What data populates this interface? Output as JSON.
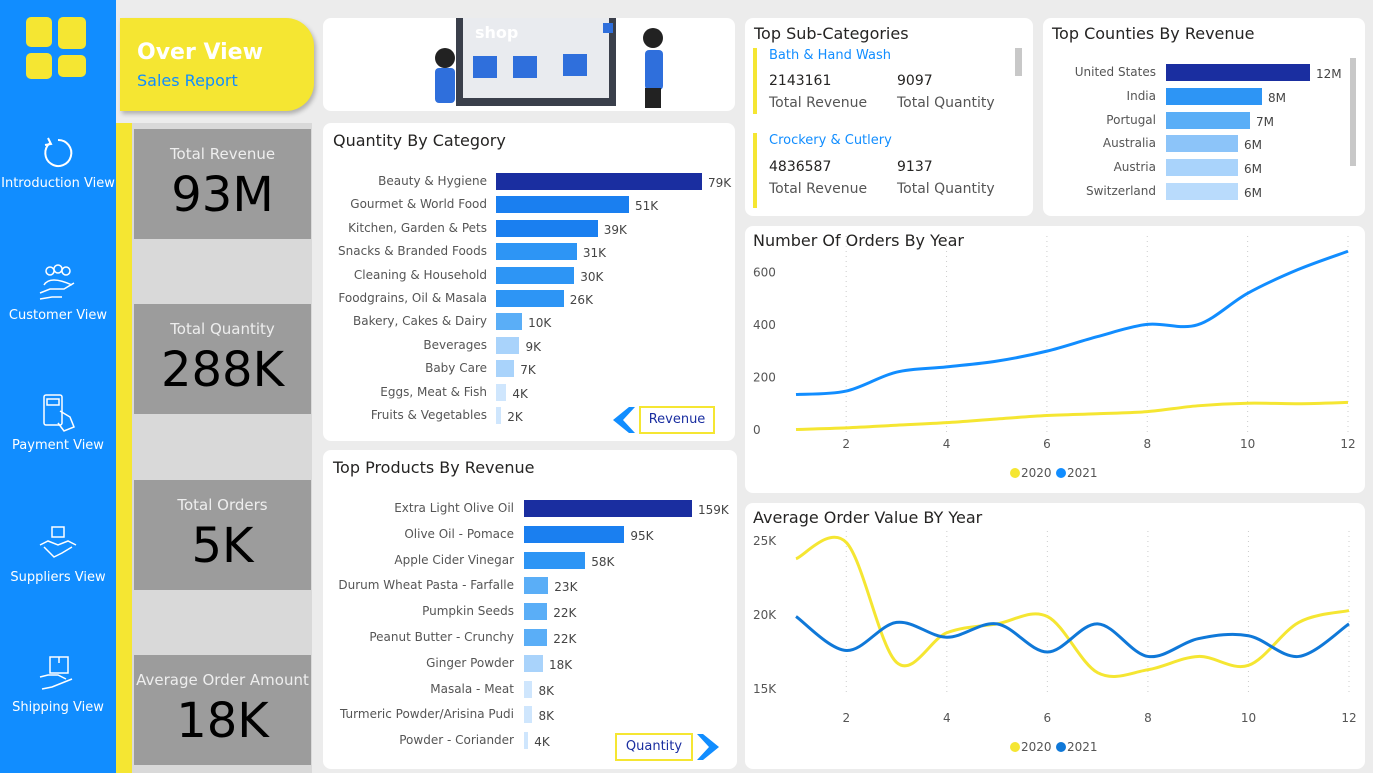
{
  "sidebar": {
    "items": [
      {
        "label": "Introduction View",
        "icon": "refresh-icon"
      },
      {
        "label": "Customer View",
        "icon": "customers-icon"
      },
      {
        "label": "Payment View",
        "icon": "payment-icon"
      },
      {
        "label": "Suppliers View",
        "icon": "handshake-icon"
      },
      {
        "label": "Shipping View",
        "icon": "shipping-icon"
      }
    ]
  },
  "header": {
    "title": "Over View",
    "subtitle": "Sales Report",
    "banner_text": "shop"
  },
  "kpis": [
    {
      "label": "Total Revenue",
      "value": "93M"
    },
    {
      "label": "Total Quantity",
      "value": "288K"
    },
    {
      "label": "Total Orders",
      "value": "5K"
    },
    {
      "label": "Average Order Amount",
      "value": "18K"
    }
  ],
  "sub_categories": {
    "title": "Top Sub-Categories",
    "items": [
      {
        "name": "Bath & Hand Wash",
        "revenue": "2143161",
        "quantity": "9097",
        "revenue_label": "Total Revenue",
        "quantity_label": "Total Quantity"
      },
      {
        "name": "Crockery & Cutlery",
        "revenue": "4836587",
        "quantity": "9137",
        "revenue_label": "Total Revenue",
        "quantity_label": "Total Quantity"
      }
    ]
  },
  "colors": {
    "primary": "#118dff",
    "accent": "#f5e632",
    "dark_bar": "#1a2ea0",
    "line_2020": "#f5e632",
    "line_2021_orders": "#118dff",
    "line_2021_aov": "#0f78d8"
  },
  "chart_data": [
    {
      "type": "bar",
      "orientation": "horizontal",
      "title": "Quantity By Category",
      "categories": [
        "Beauty & Hygiene",
        "Gourmet & World Food",
        "Kitchen, Garden & Pets",
        "Snacks & Branded Foods",
        "Cleaning & Household",
        "Foodgrains, Oil & Masala",
        "Bakery, Cakes & Dairy",
        "Beverages",
        "Baby Care",
        "Eggs, Meat & Fish",
        "Fruits & Vegetables"
      ],
      "values": [
        79,
        51,
        39,
        31,
        30,
        26,
        10,
        9,
        7,
        4,
        2
      ],
      "labels": [
        "79K",
        "51K",
        "39K",
        "31K",
        "30K",
        "26K",
        "10K",
        "9K",
        "7K",
        "4K",
        "2K"
      ],
      "toggle_label": "Revenue"
    },
    {
      "type": "bar",
      "orientation": "horizontal",
      "title": "Top Products By Revenue",
      "categories": [
        "Extra Light Olive Oil",
        "Olive Oil - Pomace",
        "Apple Cider Vinegar",
        "Durum Wheat Pasta - Farfalle",
        "Pumpkin Seeds",
        "Peanut Butter - Crunchy",
        "Ginger Powder",
        "Masala - Meat",
        "Turmeric Powder/Arisina Pudi",
        "Powder - Coriander"
      ],
      "values": [
        159,
        95,
        58,
        23,
        22,
        22,
        18,
        8,
        8,
        4
      ],
      "labels": [
        "159K",
        "95K",
        "58K",
        "23K",
        "22K",
        "22K",
        "18K",
        "8K",
        "8K",
        "4K"
      ],
      "toggle_label": "Quantity"
    },
    {
      "type": "bar",
      "orientation": "horizontal",
      "title": "Top Counties By Revenue",
      "categories": [
        "United States",
        "India",
        "Portugal",
        "Australia",
        "Austria",
        "Switzerland"
      ],
      "values": [
        12,
        8,
        7,
        6,
        6,
        6
      ],
      "labels": [
        "12M",
        "8M",
        "7M",
        "6M",
        "6M",
        "6M"
      ]
    },
    {
      "type": "line",
      "title": "Number Of Orders By Year",
      "x": [
        1,
        2,
        3,
        4,
        5,
        6,
        7,
        8,
        9,
        10,
        11,
        12
      ],
      "xticks": [
        "2",
        "4",
        "6",
        "8",
        "10",
        "12"
      ],
      "yticks": [
        "0",
        "200",
        "400",
        "600"
      ],
      "ylim": [
        0,
        700
      ],
      "legend": "bottom",
      "series": [
        {
          "name": "2020",
          "values": [
            2,
            8,
            18,
            28,
            42,
            55,
            62,
            70,
            92,
            102,
            100,
            105
          ]
        },
        {
          "name": "2021",
          "values": [
            135,
            148,
            220,
            240,
            262,
            300,
            355,
            402,
            400,
            520,
            610,
            680
          ]
        }
      ]
    },
    {
      "type": "line",
      "title": "Average Order Value BY Year",
      "x": [
        1,
        2,
        3,
        4,
        5,
        6,
        7,
        8,
        9,
        10,
        11,
        12
      ],
      "xticks": [
        "2",
        "4",
        "6",
        "8",
        "10",
        "12"
      ],
      "yticks": [
        "15K",
        "20K",
        "25K"
      ],
      "ylim": [
        15000,
        25000
      ],
      "legend": "bottom",
      "series": [
        {
          "name": "2020",
          "values": [
            23800,
            24900,
            16800,
            18800,
            19400,
            19900,
            16100,
            16300,
            17200,
            16600,
            19500,
            20300
          ]
        },
        {
          "name": "2021",
          "values": [
            19900,
            17600,
            19500,
            18500,
            19400,
            17500,
            19400,
            17200,
            18400,
            18600,
            17200,
            19400
          ]
        }
      ]
    }
  ]
}
